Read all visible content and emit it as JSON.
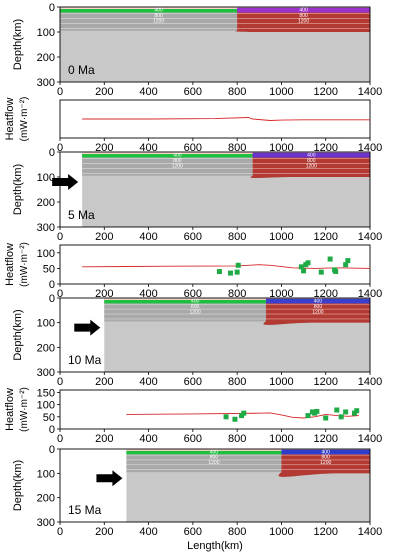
{
  "chart_data": [
    {
      "type": "section",
      "panel": "depth-0",
      "ylabel": "Depth(km)",
      "age": "0 Ma",
      "xlim": [
        0,
        1400
      ],
      "ylim": [
        0,
        300
      ],
      "xticks": [
        0,
        200,
        400,
        600,
        800,
        1000,
        1200,
        1400
      ],
      "yticks": [
        0,
        100,
        200,
        300
      ],
      "model_start": 0,
      "boundary": 800,
      "isotherm_labels": [
        "400",
        "800",
        "1200"
      ],
      "colors": {
        "crust_left": "#1fbf3f",
        "crust_right": "#9933cc",
        "mantle_left": "#a9a9a9",
        "mantle_right": "#b23a32",
        "sublith": "#c8c8c8"
      }
    },
    {
      "type": "line",
      "panel": "heatflow-0",
      "ylabel": [
        "Heatflow",
        "(mW·m⁻²)"
      ],
      "xlim": [
        0,
        1400
      ],
      "xticks": [
        0,
        200,
        400,
        600,
        800,
        1000,
        1200,
        1400
      ],
      "yticks": [],
      "line": {
        "x": [
          100,
          400,
          700,
          850,
          870,
          950,
          1000,
          1100,
          1400
        ],
        "y": [
          50,
          50,
          51,
          54,
          50,
          46,
          47,
          48,
          48
        ]
      },
      "observed": [],
      "colors": {
        "model": "#d62728",
        "observed": "#1faa46"
      }
    },
    {
      "type": "section",
      "panel": "depth-5",
      "ylabel": "Depth(km)",
      "age": "5 Ma",
      "xlim": [
        0,
        1400
      ],
      "ylim": [
        0,
        300
      ],
      "xticks": [
        0,
        200,
        400,
        600,
        800,
        1000,
        1200,
        1400
      ],
      "yticks": [
        0,
        100,
        200,
        300
      ],
      "model_start": 100,
      "boundary": 870,
      "isotherm_labels": [
        "400",
        "800",
        "1200"
      ],
      "colors": {
        "crust_left": "#1fbf3f",
        "crust_right": "#6a33cc",
        "mantle_left": "#a9a9a9",
        "mantle_right": "#b23a32",
        "sublith": "#c8c8c8"
      }
    },
    {
      "type": "line",
      "panel": "heatflow-5",
      "ylabel": [
        "Heatflow",
        "(mW·m⁻²)"
      ],
      "xlim": [
        0,
        1400
      ],
      "xticks": [
        0,
        200,
        400,
        600,
        800,
        1000,
        1200,
        1400
      ],
      "yticks": [
        0,
        50,
        100
      ],
      "ylim": [
        0,
        125
      ],
      "line": {
        "x": [
          100,
          500,
          800,
          900,
          950,
          1050,
          1150,
          1250,
          1400
        ],
        "y": [
          55,
          57,
          58,
          62,
          60,
          52,
          50,
          52,
          50
        ]
      },
      "observed": [
        [
          720,
          40
        ],
        [
          770,
          35
        ],
        [
          800,
          38
        ],
        [
          805,
          60
        ],
        [
          1090,
          55
        ],
        [
          1100,
          42
        ],
        [
          1110,
          62
        ],
        [
          1120,
          68
        ],
        [
          1180,
          38
        ],
        [
          1220,
          80
        ],
        [
          1240,
          45
        ],
        [
          1245,
          40
        ],
        [
          1290,
          62
        ],
        [
          1300,
          75
        ]
      ],
      "colors": {
        "model": "#d62728",
        "observed": "#1faa46"
      }
    },
    {
      "type": "section",
      "panel": "depth-10",
      "ylabel": "Depth(km)",
      "age": "10 Ma",
      "xlim": [
        0,
        1400
      ],
      "ylim": [
        0,
        300
      ],
      "xticks": [
        0,
        200,
        400,
        600,
        800,
        1000,
        1200,
        1400
      ],
      "yticks": [
        0,
        100,
        200,
        300
      ],
      "model_start": 200,
      "boundary": 930,
      "isotherm_labels": [
        "400",
        "800",
        "1200"
      ],
      "colors": {
        "crust_left": "#1fbf3f",
        "crust_right": "#3a3fcc",
        "mantle_left": "#a9a9a9",
        "mantle_right": "#b23a32",
        "sublith": "#c8c8c8"
      }
    },
    {
      "type": "line",
      "panel": "heatflow-10",
      "ylabel": [
        "Heatflow",
        "(mW·m⁻²)"
      ],
      "xlim": [
        0,
        1400
      ],
      "xticks": [
        0,
        200,
        400,
        600,
        800,
        1000,
        1200,
        1400
      ],
      "yticks": [
        0,
        50,
        100,
        150
      ],
      "ylim": [
        0,
        160
      ],
      "line": {
        "x": [
          300,
          600,
          900,
          950,
          1000,
          1050,
          1100,
          1150,
          1200,
          1250,
          1300,
          1350
        ],
        "y": [
          60,
          62,
          65,
          66,
          58,
          48,
          45,
          50,
          60,
          55,
          52,
          55
        ]
      },
      "observed": [
        [
          750,
          50
        ],
        [
          790,
          40
        ],
        [
          820,
          55
        ],
        [
          830,
          65
        ],
        [
          1120,
          55
        ],
        [
          1140,
          70
        ],
        [
          1150,
          65
        ],
        [
          1160,
          72
        ],
        [
          1200,
          45
        ],
        [
          1250,
          78
        ],
        [
          1270,
          50
        ],
        [
          1290,
          70
        ],
        [
          1330,
          65
        ],
        [
          1340,
          75
        ]
      ],
      "colors": {
        "model": "#d62728",
        "observed": "#1faa46"
      }
    },
    {
      "type": "section",
      "panel": "depth-15",
      "ylabel": "Depth(km)",
      "age": "15 Ma",
      "xlabel": "Length(km)",
      "xlim": [
        0,
        1400
      ],
      "ylim": [
        0,
        300
      ],
      "xticks": [
        0,
        200,
        400,
        600,
        800,
        1000,
        1200,
        1400
      ],
      "yticks": [
        0,
        100,
        200,
        300
      ],
      "model_start": 300,
      "boundary": 1000,
      "isotherm_labels": [
        "400",
        "800",
        "1200"
      ],
      "colors": {
        "crust_left": "#1fbf3f",
        "crust_right": "#2f3ccc",
        "mantle_left": "#a9a9a9",
        "mantle_right": "#b23a32",
        "sublith": "#c8c8c8"
      }
    }
  ]
}
